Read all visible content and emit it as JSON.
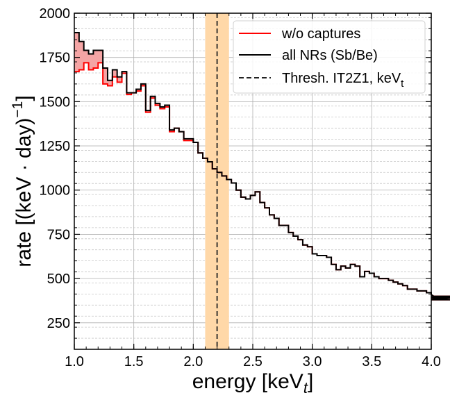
{
  "chart_data": {
    "type": "line",
    "step": true,
    "xlabel": "energy [keV",
    "xlabel_sub": "t",
    "xlabel_close": "]",
    "ylabel": "rate [(keV · day)",
    "ylabel_sup": "−1",
    "ylabel_close": "]",
    "xlim": [
      1.0,
      4.0
    ],
    "ylim": [
      100,
      2000
    ],
    "xticks": [
      1.0,
      1.5,
      2.0,
      2.5,
      3.0,
      3.5,
      4.0
    ],
    "xtick_labels": [
      "1.0",
      "1.5",
      "2.0",
      "2.5",
      "3.0",
      "3.5",
      "4.0"
    ],
    "yticks": [
      250,
      500,
      750,
      1000,
      1250,
      1500,
      1750,
      2000
    ],
    "ytick_labels": [
      "250",
      "500",
      "750",
      "1000",
      "1250",
      "1500",
      "1750",
      "2000"
    ],
    "minor_y_step": 62.5,
    "minor_x_step": 0.1,
    "grid": true,
    "legend_position": "top-right",
    "threshold": {
      "name": "Thresh. IT2Z1, keV",
      "name_sub": "t",
      "x": 2.2,
      "band": [
        2.1,
        2.3
      ],
      "band_color": "#ffd8a8",
      "line_color": "#222222"
    },
    "bin_width": 0.04,
    "x_start": 1.0,
    "series": [
      {
        "name": "w/o captures",
        "color": "#ff0000",
        "values": [
          1670,
          1680,
          1720,
          1680,
          1690,
          1720,
          1600,
          1590,
          1640,
          1610,
          1660,
          1540,
          1550,
          1560,
          1590,
          1440,
          1520,
          1480,
          1460,
          1470,
          1330,
          1350,
          1330,
          1280,
          1280,
          1270,
          1210,
          1180,
          1160,
          1120,
          1100,
          1080,
          1060,
          1040,
          1000,
          960,
          950,
          970,
          990,
          930,
          900,
          860,
          840,
          800,
          800,
          760,
          740,
          720,
          690,
          680,
          640,
          630,
          630,
          620,
          580,
          550,
          570,
          560,
          580,
          570,
          510,
          540,
          530,
          510,
          500,
          500,
          490,
          480,
          470,
          460,
          440,
          440,
          430,
          430,
          420,
          410,
          390,
          400,
          390,
          380,
          400,
          390,
          390,
          390,
          390
        ]
      },
      {
        "name": "all NRs (Sb/Be)",
        "color": "#000000",
        "values": [
          1890,
          1840,
          1790,
          1770,
          1790,
          1790,
          1690,
          1620,
          1680,
          1640,
          1670,
          1550,
          1550,
          1570,
          1600,
          1450,
          1530,
          1490,
          1470,
          1480,
          1340,
          1350,
          1330,
          1290,
          1290,
          1270,
          1210,
          1180,
          1160,
          1120,
          1100,
          1080,
          1060,
          1040,
          1000,
          960,
          950,
          970,
          990,
          930,
          900,
          860,
          840,
          800,
          800,
          760,
          740,
          720,
          690,
          680,
          640,
          630,
          630,
          620,
          580,
          550,
          570,
          560,
          580,
          570,
          510,
          540,
          530,
          510,
          500,
          500,
          490,
          480,
          470,
          460,
          440,
          440,
          430,
          430,
          420,
          410,
          390,
          400,
          390,
          380,
          400,
          390,
          390,
          390,
          390
        ]
      }
    ],
    "fill_between": {
      "color": "#f5a5a5",
      "edge_color": "#e05050"
    }
  }
}
